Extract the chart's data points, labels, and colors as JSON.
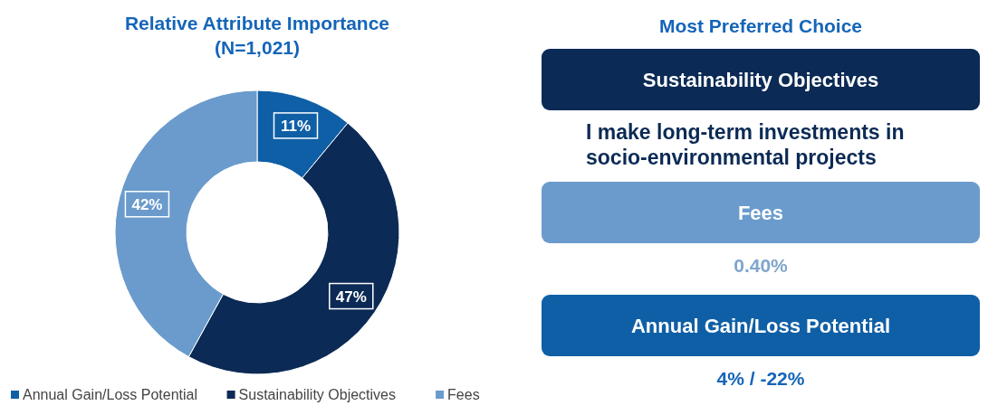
{
  "chart_data": [
    {
      "type": "donut",
      "title": "Relative Attribute Importance\n(N=1,021)",
      "categories": [
        "Annual Gain/Loss Potential",
        "Sustainability Objectives",
        "Fees"
      ],
      "values": [
        11,
        47,
        42
      ],
      "colors": [
        "#0f5fa6",
        "#0b2a55",
        "#6a9bcc"
      ],
      "value_labels": [
        "11%",
        "47%",
        "42%"
      ],
      "legend": "bottom"
    },
    {
      "type": "other",
      "title": "Most Preferred Choice",
      "categories": [
        "Sustainability Objectives",
        "Fees",
        "Annual Gain/Loss Potential"
      ],
      "colors": [
        "#0b2a55",
        "#6a9bcc",
        "#0f5fa6"
      ],
      "annotations": [
        "I make long-term investments in socio-environmental projects",
        "0.40%",
        "4% / -22%"
      ]
    }
  ]
}
